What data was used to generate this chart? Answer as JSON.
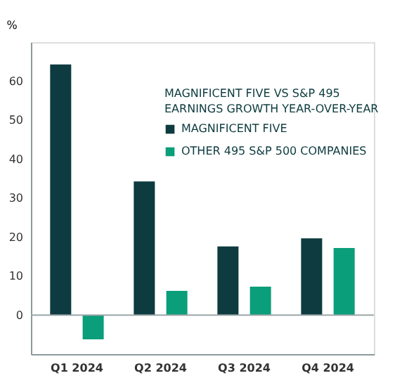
{
  "chart_data": {
    "type": "bar",
    "title": "MAGNIFICENT FIVE VS S&P 495 EARNINGS GROWTH YEAR-OVER-YEAR",
    "ylabel": "%",
    "categories": [
      "Q1 2024",
      "Q2 2024",
      "Q3 2024",
      "Q4 2024"
    ],
    "series": [
      {
        "name": "MAGNIFICENT FIVE",
        "color": "#0d3b3f",
        "values": [
          64.3,
          34.3,
          17.6,
          19.7
        ]
      },
      {
        "name": "OTHER 495 S&P 500 COMPANIES",
        "color": "#0a9e7a",
        "values": [
          -6.2,
          6.2,
          7.3,
          17.2
        ]
      }
    ],
    "ylim": [
      -10,
      70
    ],
    "yticks": [
      0,
      10,
      20,
      30,
      40,
      50,
      60
    ],
    "grid": false,
    "legend": "top right",
    "ref_lines": [
      {
        "axis": "y",
        "value": 0,
        "color": "#9aa5a8"
      }
    ]
  }
}
